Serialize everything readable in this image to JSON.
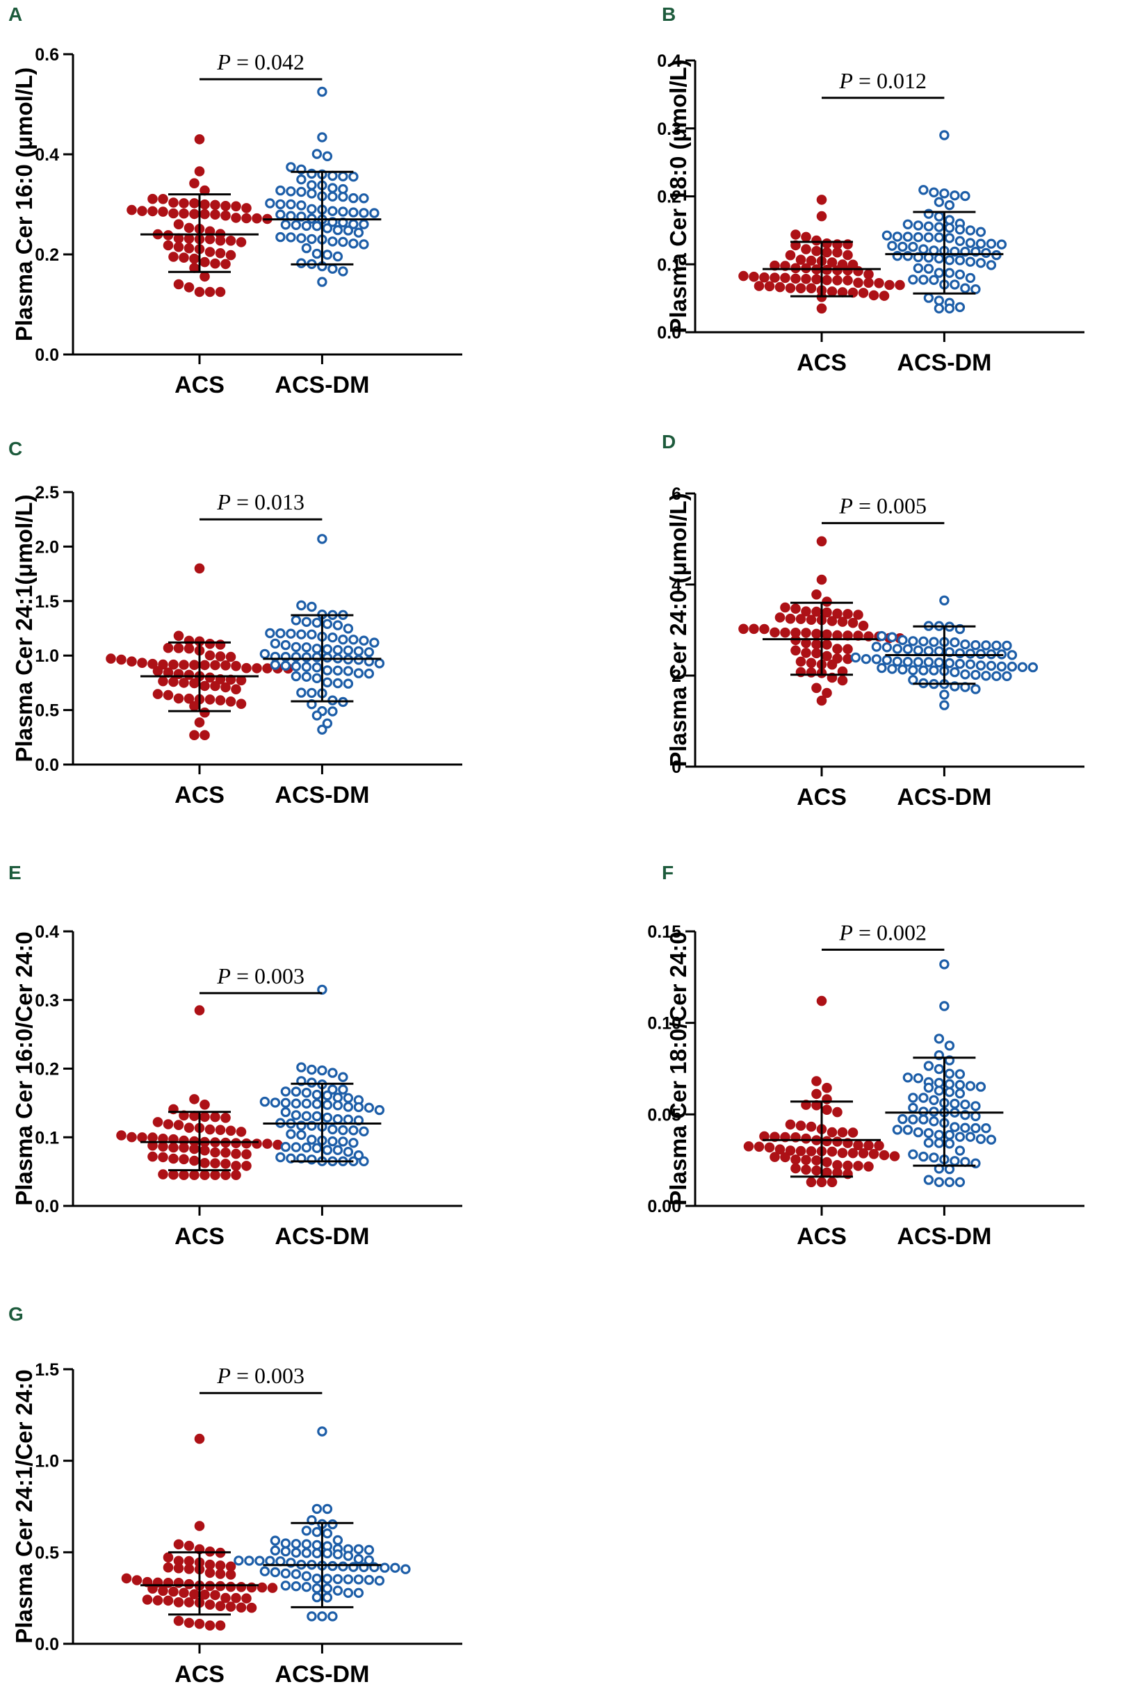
{
  "chart_data": [
    {
      "type": "scatter",
      "panel": "A",
      "ylabel": "Plasma Cer 16:0 (μmol/L)",
      "categories": [
        "ACS",
        "ACS-DM"
      ],
      "ylim": [
        0,
        0.6
      ],
      "yticks": [
        "0.0",
        "0.2",
        "0.4",
        "0.6"
      ],
      "ytick_values": [
        0,
        0.2,
        0.4,
        0.6
      ],
      "p_prefix": "P",
      "p_value": " = 0.042",
      "p_level": 0.55,
      "groups": [
        {
          "name": "ACS",
          "mean": 0.24,
          "sd_low": 0.165,
          "sd_high": 0.32,
          "n": 62,
          "min": 0.125,
          "max": 0.43
        },
        {
          "name": "ACS-DM",
          "mean": 0.27,
          "sd_low": 0.18,
          "sd_high": 0.365,
          "n": 72,
          "min": 0.145,
          "max": 0.525
        }
      ]
    },
    {
      "type": "scatter",
      "panel": "B",
      "ylabel": "Plasma Cer 18:0 (μmol/L)",
      "categories": [
        "ACS",
        "ACS-DM"
      ],
      "ylim": [
        0,
        0.4
      ],
      "yticks": [
        "0.0",
        "0.1",
        "0.2",
        "0.3",
        "0.4"
      ],
      "ytick_values": [
        0,
        0.1,
        0.2,
        0.3,
        0.4
      ],
      "p_prefix": "P",
      "p_value": " = 0.012",
      "p_level": 0.345,
      "groups": [
        {
          "name": "ACS",
          "mean": 0.093,
          "sd_low": 0.053,
          "sd_high": 0.133,
          "n": 62,
          "min": 0.035,
          "max": 0.195
        },
        {
          "name": "ACS-DM",
          "mean": 0.115,
          "sd_low": 0.057,
          "sd_high": 0.177,
          "n": 72,
          "min": 0.035,
          "max": 0.29
        }
      ]
    },
    {
      "type": "scatter",
      "panel": "C",
      "ylabel": "Plasma Cer 24:1(μmol/L)",
      "categories": [
        "ACS",
        "ACS-DM"
      ],
      "ylim": [
        0,
        2.5
      ],
      "yticks": [
        "0.0",
        "0.5",
        "1.0",
        "1.5",
        "2.0",
        "2.5"
      ],
      "ytick_values": [
        0,
        0.5,
        1.0,
        1.5,
        2.0,
        2.5
      ],
      "p_prefix": "P",
      "p_value": " = 0.013",
      "p_level": 2.25,
      "groups": [
        {
          "name": "ACS",
          "mean": 0.81,
          "sd_low": 0.49,
          "sd_high": 1.12,
          "n": 62,
          "min": 0.27,
          "max": 1.8
        },
        {
          "name": "ACS-DM",
          "mean": 0.97,
          "sd_low": 0.58,
          "sd_high": 1.37,
          "n": 72,
          "min": 0.32,
          "max": 2.07
        }
      ]
    },
    {
      "type": "scatter",
      "panel": "D",
      "ylabel": "Plasma Cer 24:0 (μmol/L)",
      "categories": [
        "ACS",
        "ACS-DM"
      ],
      "ylim": [
        0,
        6
      ],
      "yticks": [
        "0",
        "2",
        "4",
        "6"
      ],
      "ytick_values": [
        0,
        2,
        4,
        6
      ],
      "p_prefix": "P",
      "p_value": " = 0.005",
      "p_level": 5.35,
      "groups": [
        {
          "name": "ACS",
          "mean": 2.8,
          "sd_low": 2.02,
          "sd_high": 3.6,
          "n": 62,
          "min": 1.45,
          "max": 4.95
        },
        {
          "name": "ACS-DM",
          "mean": 2.45,
          "sd_low": 1.82,
          "sd_high": 3.08,
          "n": 72,
          "min": 1.35,
          "max": 3.65
        }
      ]
    },
    {
      "type": "scatter",
      "panel": "E",
      "ylabel": "Plasma Cer 16:0/Cer 24:0",
      "categories": [
        "ACS",
        "ACS-DM"
      ],
      "ylim": [
        0,
        0.4
      ],
      "yticks": [
        "0.0",
        "0.1",
        "0.2",
        "0.3",
        "0.4"
      ],
      "ytick_values": [
        0,
        0.1,
        0.2,
        0.3,
        0.4
      ],
      "p_prefix": "P",
      "p_value": " = 0.003",
      "p_level": 0.31,
      "groups": [
        {
          "name": "ACS",
          "mean": 0.093,
          "sd_low": 0.052,
          "sd_high": 0.137,
          "n": 62,
          "min": 0.045,
          "max": 0.285
        },
        {
          "name": "ACS-DM",
          "mean": 0.12,
          "sd_low": 0.065,
          "sd_high": 0.178,
          "n": 72,
          "min": 0.065,
          "max": 0.315
        }
      ]
    },
    {
      "type": "scatter",
      "panel": "F",
      "ylabel": "Plasma Cer 18:0/Cer 24:0",
      "categories": [
        "ACS",
        "ACS-DM"
      ],
      "ylim": [
        0,
        0.15
      ],
      "yticks": [
        "0.00",
        "0.05",
        "0.10",
        "0.15"
      ],
      "ytick_values": [
        0,
        0.05,
        0.1,
        0.15
      ],
      "p_prefix": "P",
      "p_value": " = 0.002",
      "p_level": 0.14,
      "groups": [
        {
          "name": "ACS",
          "mean": 0.036,
          "sd_low": 0.016,
          "sd_high": 0.057,
          "n": 62,
          "min": 0.013,
          "max": 0.112
        },
        {
          "name": "ACS-DM",
          "mean": 0.051,
          "sd_low": 0.022,
          "sd_high": 0.081,
          "n": 72,
          "min": 0.013,
          "max": 0.132
        }
      ]
    },
    {
      "type": "scatter",
      "panel": "G",
      "ylabel": "Plasma Cer 24:1/Cer 24:0",
      "categories": [
        "ACS",
        "ACS-DM"
      ],
      "ylim": [
        0,
        1.5
      ],
      "yticks": [
        "0.0",
        "0.5",
        "1.0",
        "1.5"
      ],
      "ytick_values": [
        0,
        0.5,
        1.0,
        1.5
      ],
      "p_prefix": "P",
      "p_value": " = 0.003",
      "p_level": 1.37,
      "groups": [
        {
          "name": "ACS",
          "mean": 0.32,
          "sd_low": 0.16,
          "sd_high": 0.5,
          "n": 62,
          "min": 0.1,
          "max": 1.12
        },
        {
          "name": "ACS-DM",
          "mean": 0.43,
          "sd_low": 0.2,
          "sd_high": 0.66,
          "n": 72,
          "min": 0.15,
          "max": 1.16
        }
      ]
    }
  ]
}
